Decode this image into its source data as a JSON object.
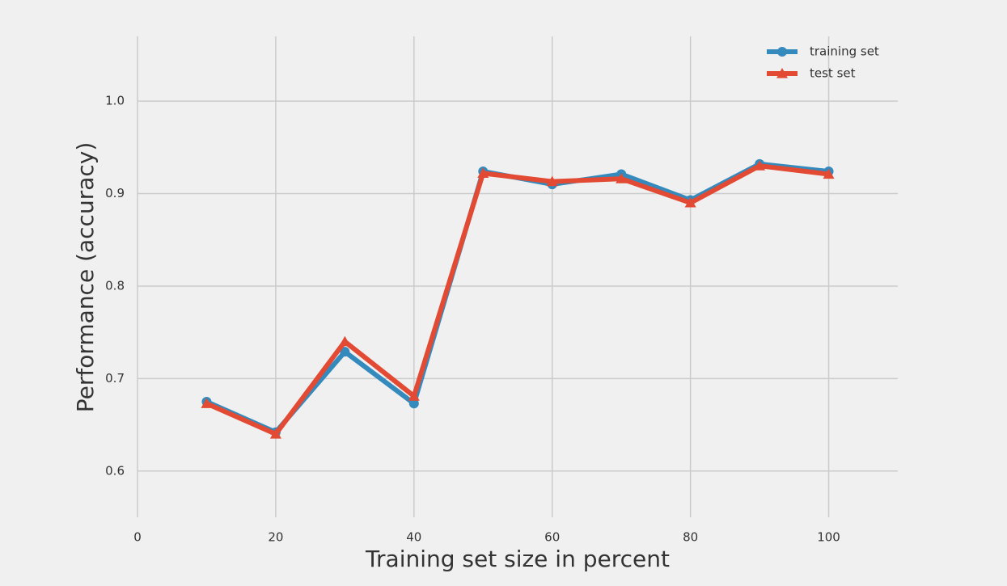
{
  "chart_data": {
    "type": "line",
    "x_label": "Training set size in percent",
    "y_label": "Performance (accuracy)",
    "x": [
      10,
      20,
      30,
      40,
      50,
      60,
      70,
      80,
      90,
      100
    ],
    "series": [
      {
        "name": "training set",
        "color": "#348abd",
        "marker": "circle",
        "values": [
          0.675,
          0.642,
          0.729,
          0.673,
          0.924,
          0.91,
          0.921,
          0.893,
          0.932,
          0.924
        ]
      },
      {
        "name": "test set",
        "color": "#e24a33",
        "marker": "triangle",
        "values": [
          0.673,
          0.64,
          0.74,
          0.681,
          0.922,
          0.913,
          0.916,
          0.89,
          0.93,
          0.921
        ]
      }
    ],
    "xlim": [
      0,
      110
    ],
    "xticks": [
      0,
      20,
      40,
      60,
      80,
      100
    ],
    "ylim": [
      0.55,
      1.07
    ],
    "yticks": [
      0.6,
      0.7,
      0.8,
      0.9,
      {
        "value": 1,
        "label": "1.0"
      }
    ],
    "grid": true,
    "legend": "upper right"
  }
}
